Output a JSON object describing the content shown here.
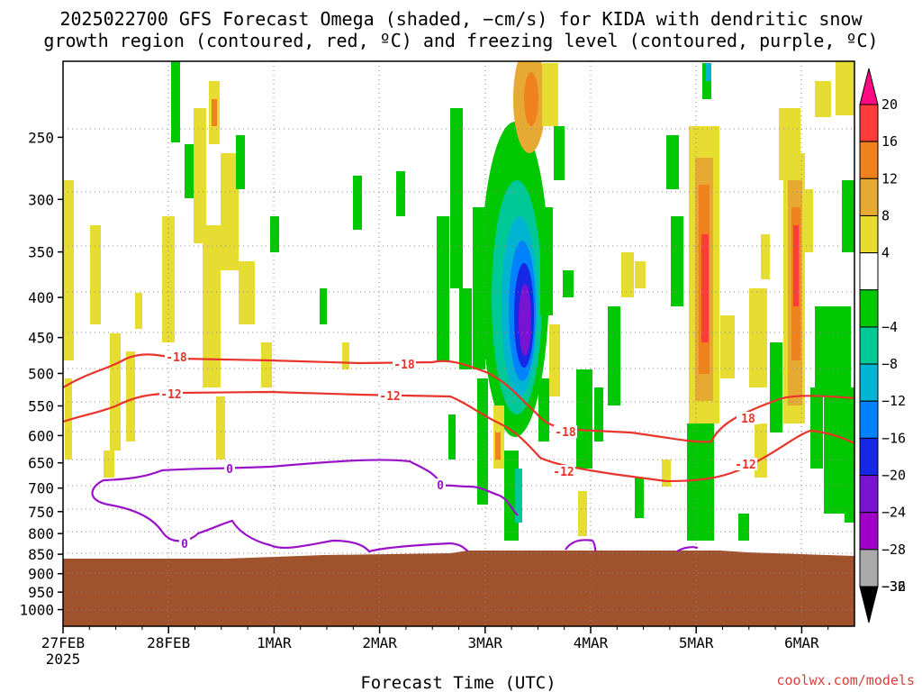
{
  "title_line1": "2025022700 GFS Forecast Omega (shaded, −cm/s) for KIDA with dendritic snow",
  "title_line2": "growth region (contoured, red, ºC) and freezing level (contoured, purple, ºC)",
  "xlabel": "Forecast Time (UTC)",
  "credit": "coolwx.com/models",
  "chart_data": {
    "type": "heatmap",
    "title": "2025022700 GFS Forecast Omega (shaded, −cm/s) for KIDA with dendritic snow growth region (contoured, red, ºC) and freezing level (contoured, purple, ºC)",
    "xlabel": "Forecast Time (UTC)",
    "ylabel": "",
    "x_tick_labels": [
      "27FEB",
      "28FEB",
      "1MAR",
      "2MAR",
      "3MAR",
      "4MAR",
      "5MAR",
      "6MAR"
    ],
    "x_start_year_label": "2025",
    "xlim_days": [
      0,
      7.5
    ],
    "y_ticks_hpa": [
      250,
      300,
      350,
      400,
      450,
      500,
      550,
      600,
      650,
      700,
      750,
      800,
      850,
      900,
      950,
      1000
    ],
    "ylim_hpa": [
      1050,
      200
    ],
    "grid": "dotted",
    "colorbar": {
      "labels": [
        20,
        16,
        12,
        8,
        4,
        -4,
        -8,
        -12,
        -16,
        -20,
        -24,
        -28,
        -32,
        -36
      ],
      "colors": [
        "#ff0a82",
        "#ff3c3c",
        "#f0821e",
        "#e6aa32",
        "#e6dc32",
        "#ffffff",
        "#00c800",
        "#00c896",
        "#00b4d2",
        "#0082ff",
        "#1428e6",
        "#7814d2",
        "#a000c8",
        "#aaaaaa",
        "#000000"
      ]
    },
    "contours": {
      "dendritic_growth_levels": [
        -12,
        -18
      ],
      "freezing_level": [
        0
      ],
      "dendritic_color": "#e8342a",
      "freezing_color": "#9a12c8"
    },
    "terrain_color": "#a0522d"
  }
}
